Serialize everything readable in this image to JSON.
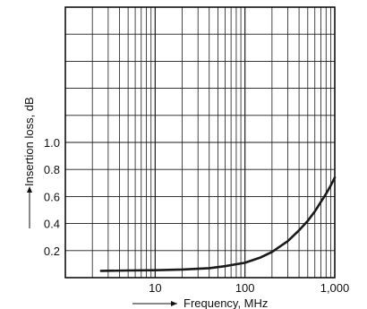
{
  "chart_data": {
    "type": "line",
    "xlabel": "Frequency, MHz",
    "ylabel": "Insertion loss, dB",
    "x_scale": "log",
    "xlim": [
      1,
      1000
    ],
    "ylim": [
      0,
      2.0
    ],
    "grid": true,
    "x_ticks": [
      {
        "value": 10,
        "label": "10"
      },
      {
        "value": 100,
        "label": "100"
      },
      {
        "value": 1000,
        "label": "1,000"
      }
    ],
    "y_ticks": [
      {
        "value": 0.2,
        "label": "0.2"
      },
      {
        "value": 0.4,
        "label": "0.4"
      },
      {
        "value": 0.6,
        "label": "0.6"
      },
      {
        "value": 0.8,
        "label": "0.8"
      },
      {
        "value": 1.0,
        "label": "1.0"
      }
    ],
    "series": [
      {
        "x": [
          2.5,
          5,
          10,
          20,
          40,
          60,
          100,
          150,
          200,
          300,
          400,
          500,
          600,
          700,
          800,
          900,
          1000
        ],
        "y": [
          0.05,
          0.053,
          0.055,
          0.06,
          0.07,
          0.085,
          0.11,
          0.15,
          0.19,
          0.27,
          0.35,
          0.42,
          0.49,
          0.56,
          0.62,
          0.68,
          0.74
        ]
      }
    ],
    "colors": {
      "line": "#1a1a1a",
      "grid": "#1a1a1a",
      "frame": "#000000"
    }
  }
}
